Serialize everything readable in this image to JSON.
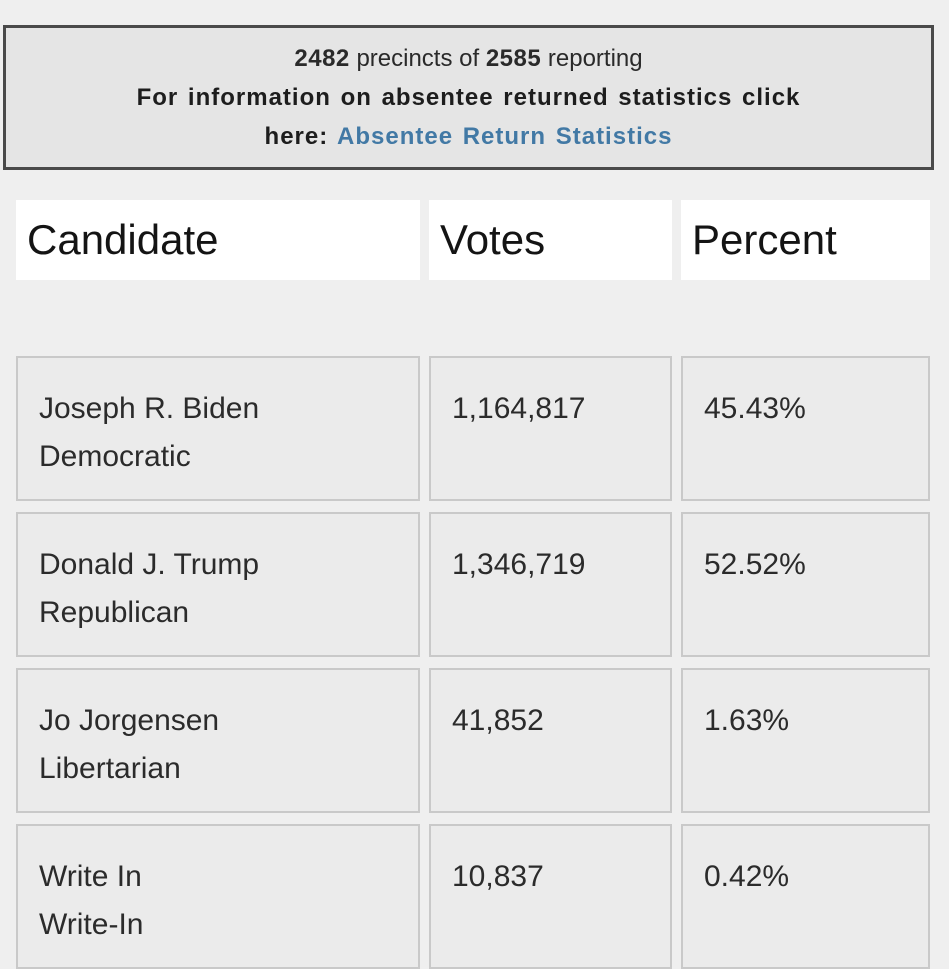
{
  "page": {
    "background_color": "#efefef"
  },
  "info_box": {
    "background_color": "#e5e5e5",
    "border_color": "#4a4a4a",
    "reporting_line": {
      "precincts_reporting": "2482",
      "middle_text": "precincts of",
      "precincts_total": "2585",
      "end_text": "reporting"
    },
    "absentee_prompt_line1": "For information on absentee returned statistics click",
    "absentee_prompt_line2_prefix": "here:",
    "absentee_link_label": "Absentee Return Statistics",
    "link_color": "#4279a5"
  },
  "results_table": {
    "columns": {
      "candidate": "Candidate",
      "votes": "Votes",
      "percent": "Percent"
    },
    "rows": [
      {
        "candidate": "Joseph R. Biden",
        "party": "Democratic",
        "votes": "1,164,817",
        "percent": "45.43%"
      },
      {
        "candidate": "Donald J. Trump",
        "party": "Republican",
        "votes": "1,346,719",
        "percent": "52.52%"
      },
      {
        "candidate": "Jo Jorgensen",
        "party": "Libertarian",
        "votes": "41,852",
        "percent": "1.63%"
      },
      {
        "candidate": "Write In",
        "party": "Write-In",
        "votes": "10,837",
        "percent": "0.42%"
      }
    ]
  }
}
